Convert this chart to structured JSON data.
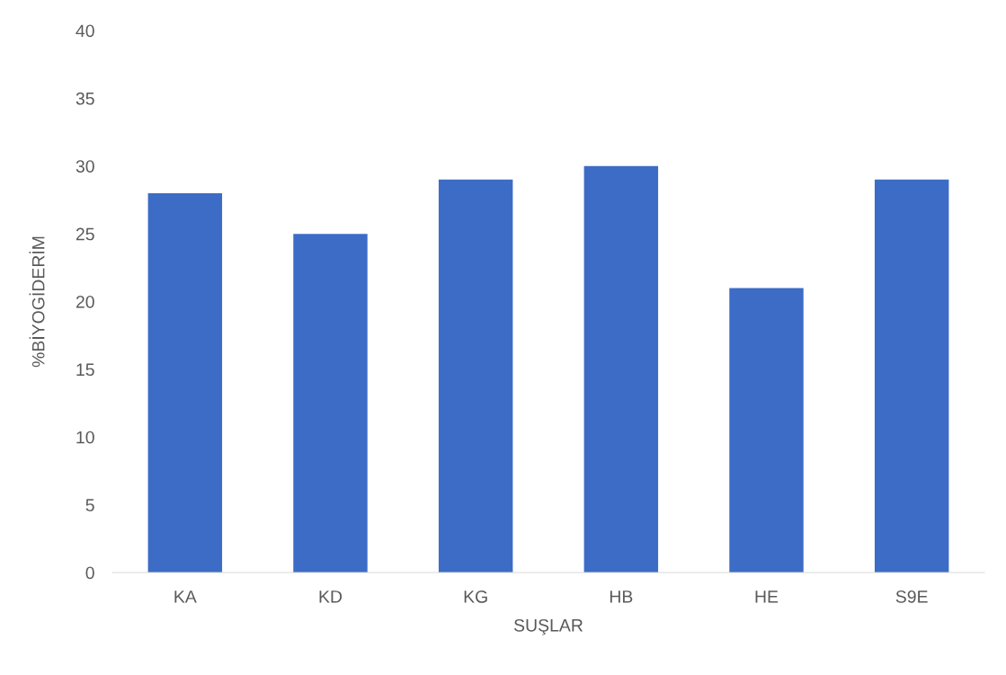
{
  "chart_data": {
    "type": "bar",
    "xlabel": "SUŞLAR",
    "ylabel": "%BİYOGİDERİM",
    "categories": [
      "KA",
      "KD",
      "KG",
      "HB",
      "HE",
      "S9E"
    ],
    "values": [
      28,
      25,
      29,
      30,
      21,
      29
    ],
    "color": "#3d6cc6",
    "ylim": [
      0,
      40
    ],
    "yticks": [
      0,
      5,
      10,
      15,
      20,
      25,
      30,
      35,
      40
    ],
    "grid": false,
    "legend": false
  }
}
